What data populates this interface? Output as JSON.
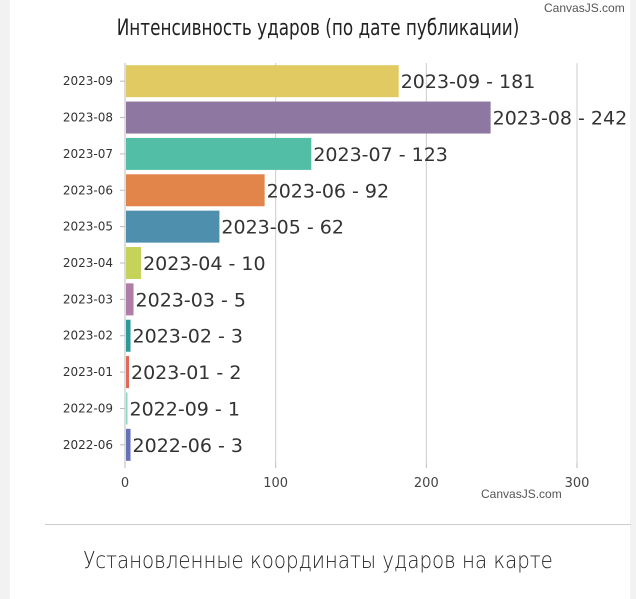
{
  "credit": "CanvasJS.com",
  "section_title": "Установленные координаты ударов на карте",
  "chart_data": {
    "type": "bar",
    "orientation": "horizontal",
    "title": "Интенсивность ударов (по дате публикации)",
    "categories": [
      "2023-09",
      "2023-08",
      "2023-07",
      "2023-06",
      "2023-05",
      "2023-04",
      "2023-03",
      "2023-02",
      "2023-01",
      "2022-09",
      "2022-06"
    ],
    "values": [
      181,
      242,
      123,
      92,
      62,
      10,
      5,
      3,
      2,
      1,
      3
    ],
    "colors": [
      "#E1CA61",
      "#8E77A0",
      "#52BEA6",
      "#E2854B",
      "#4F8FAE",
      "#C5D35A",
      "#B07DA6",
      "#2D9999",
      "#E0685C",
      "#8FD8C5",
      "#6571B8"
    ],
    "xlim": [
      0,
      300
    ],
    "xticks": [
      0,
      100,
      200,
      300
    ],
    "grid": true,
    "index_label_format": "{label} - {y}"
  }
}
